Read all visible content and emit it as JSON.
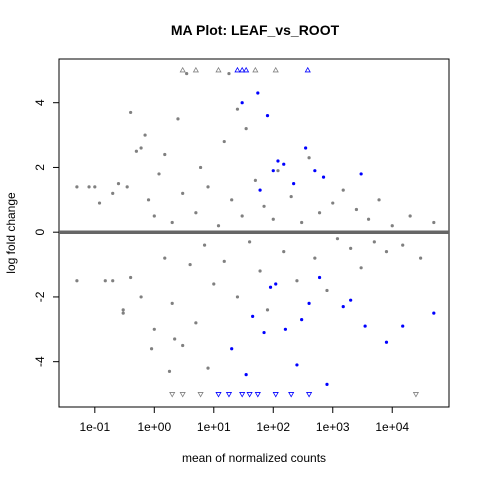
{
  "chart_data": {
    "type": "scatter",
    "title": "MA Plot: LEAF_vs_ROOT",
    "xlabel": "mean of normalized counts",
    "ylabel": "log fold change",
    "x_scale": "log10",
    "xlim": [
      0.025,
      90000
    ],
    "ylim": [
      -5.4,
      5.35
    ],
    "x_ticks": [
      {
        "value": 0.1,
        "label": "1e-01"
      },
      {
        "value": 1,
        "label": "1e+00"
      },
      {
        "value": 10,
        "label": "1e+01"
      },
      {
        "value": 100,
        "label": "1e+02"
      },
      {
        "value": 1000,
        "label": "1e+03"
      },
      {
        "value": 10000,
        "label": "1e+04"
      }
    ],
    "y_ticks": [
      {
        "value": -4,
        "label": "-4"
      },
      {
        "value": -2,
        "label": "-2"
      },
      {
        "value": 0,
        "label": "0"
      },
      {
        "value": 2,
        "label": "2"
      },
      {
        "value": 4,
        "label": "4"
      }
    ],
    "reference_line": {
      "y": 0,
      "color": "#666666"
    },
    "colors": {
      "not_significant": "#808080",
      "significant": "#0000ff"
    },
    "series": [
      {
        "name": "not significant",
        "color": "#808080",
        "marker": "dot",
        "points": [
          [
            0.05,
            1.4
          ],
          [
            0.05,
            -1.5
          ],
          [
            0.08,
            1.4
          ],
          [
            0.1,
            1.4
          ],
          [
            0.12,
            0.9
          ],
          [
            0.15,
            -1.5
          ],
          [
            0.2,
            1.2
          ],
          [
            0.2,
            -1.5
          ],
          [
            0.25,
            1.5
          ],
          [
            0.3,
            -2.5
          ],
          [
            0.35,
            1.4
          ],
          [
            0.4,
            -1.4
          ],
          [
            0.5,
            2.5
          ],
          [
            0.6,
            -2.0
          ],
          [
            0.7,
            3.0
          ],
          [
            0.8,
            1.0
          ],
          [
            1.0,
            -3.0
          ],
          [
            1.0,
            0.5
          ],
          [
            1.2,
            1.8
          ],
          [
            1.5,
            -0.8
          ],
          [
            1.5,
            2.4
          ],
          [
            2.0,
            -2.2
          ],
          [
            2.0,
            0.3
          ],
          [
            2.5,
            3.5
          ],
          [
            3.0,
            -3.5
          ],
          [
            3.0,
            1.2
          ],
          [
            4.0,
            -1.0
          ],
          [
            5.0,
            0.6
          ],
          [
            5.0,
            -2.8
          ],
          [
            6.0,
            2.0
          ],
          [
            7.0,
            -0.4
          ],
          [
            8.0,
            1.4
          ],
          [
            10.0,
            -1.6
          ],
          [
            12.0,
            0.2
          ],
          [
            15.0,
            2.8
          ],
          [
            15.0,
            -0.9
          ],
          [
            20.0,
            1.0
          ],
          [
            25.0,
            -2.0
          ],
          [
            30.0,
            0.5
          ],
          [
            35.0,
            3.2
          ],
          [
            40.0,
            -0.3
          ],
          [
            50.0,
            1.6
          ],
          [
            60.0,
            -1.2
          ],
          [
            70.0,
            0.8
          ],
          [
            80.0,
            -2.4
          ],
          [
            100.0,
            0.4
          ],
          [
            120.0,
            1.9
          ],
          [
            150.0,
            -0.6
          ],
          [
            200.0,
            1.1
          ],
          [
            250.0,
            -1.5
          ],
          [
            300.0,
            0.3
          ],
          [
            400.0,
            2.3
          ],
          [
            500.0,
            -0.8
          ],
          [
            600.0,
            0.6
          ],
          [
            800.0,
            -1.8
          ],
          [
            1000.0,
            0.9
          ],
          [
            1200.0,
            -0.2
          ],
          [
            1500.0,
            1.3
          ],
          [
            2000.0,
            -0.5
          ],
          [
            2500.0,
            0.7
          ],
          [
            3000.0,
            -1.1
          ],
          [
            4000.0,
            0.4
          ],
          [
            5000.0,
            -0.3
          ],
          [
            6000.0,
            1.0
          ],
          [
            8000.0,
            -0.6
          ],
          [
            10000.0,
            0.2
          ],
          [
            15000.0,
            -0.4
          ],
          [
            20000.0,
            0.5
          ],
          [
            30000.0,
            -0.8
          ],
          [
            50000.0,
            0.3
          ],
          [
            3.5,
            4.9
          ],
          [
            18.0,
            4.9
          ],
          [
            0.4,
            3.7
          ],
          [
            1.8,
            -4.3
          ],
          [
            8.0,
            -4.2
          ],
          [
            0.9,
            -3.6
          ],
          [
            2.2,
            -3.3
          ],
          [
            25.0,
            3.8
          ],
          [
            0.3,
            -2.4
          ],
          [
            0.6,
            2.6
          ]
        ]
      },
      {
        "name": "significant",
        "color": "#0000ff",
        "marker": "dot",
        "points": [
          [
            30.0,
            4.0
          ],
          [
            55.0,
            4.3
          ],
          [
            80.0,
            3.6
          ],
          [
            120.0,
            2.2
          ],
          [
            150.0,
            2.1
          ],
          [
            220.0,
            1.5
          ],
          [
            350.0,
            2.6
          ],
          [
            500.0,
            1.9
          ],
          [
            700.0,
            1.7
          ],
          [
            3000.0,
            1.8
          ],
          [
            60.0,
            1.3
          ],
          [
            100.0,
            1.9
          ],
          [
            45.0,
            -2.6
          ],
          [
            70.0,
            -3.1
          ],
          [
            110.0,
            -1.6
          ],
          [
            160.0,
            -3.0
          ],
          [
            300.0,
            -2.7
          ],
          [
            400.0,
            -2.2
          ],
          [
            800.0,
            -4.7
          ],
          [
            1500.0,
            -2.3
          ],
          [
            2000.0,
            -2.1
          ],
          [
            3500.0,
            -2.9
          ],
          [
            8000.0,
            -3.4
          ],
          [
            15000.0,
            -2.9
          ],
          [
            50000.0,
            -2.5
          ],
          [
            20.0,
            -3.6
          ],
          [
            35.0,
            -4.4
          ],
          [
            90.0,
            -1.7
          ],
          [
            250.0,
            -4.1
          ],
          [
            600.0,
            -1.4
          ]
        ]
      },
      {
        "name": "capped high",
        "color_significant": "#0000ff",
        "color_not_significant": "#808080",
        "marker": "triangle-up",
        "points": [
          {
            "x": 3.0,
            "y": 5.0,
            "significant": false
          },
          {
            "x": 5.0,
            "y": 5.0,
            "significant": false
          },
          {
            "x": 12.0,
            "y": 5.0,
            "significant": false
          },
          {
            "x": 25.0,
            "y": 5.0,
            "significant": true
          },
          {
            "x": 30.0,
            "y": 5.0,
            "significant": true
          },
          {
            "x": 35.0,
            "y": 5.0,
            "significant": true
          },
          {
            "x": 50.0,
            "y": 5.0,
            "significant": false
          },
          {
            "x": 110.0,
            "y": 5.0,
            "significant": false
          },
          {
            "x": 380.0,
            "y": 5.0,
            "significant": true
          }
        ]
      },
      {
        "name": "capped low",
        "color_significant": "#0000ff",
        "color_not_significant": "#808080",
        "marker": "triangle-down",
        "points": [
          {
            "x": 2.0,
            "y": -5.0,
            "significant": false
          },
          {
            "x": 3.0,
            "y": -5.0,
            "significant": false
          },
          {
            "x": 6.0,
            "y": -5.0,
            "significant": false
          },
          {
            "x": 12.0,
            "y": -5.0,
            "significant": true
          },
          {
            "x": 18.0,
            "y": -5.0,
            "significant": true
          },
          {
            "x": 30.0,
            "y": -5.0,
            "significant": true
          },
          {
            "x": 40.0,
            "y": -5.0,
            "significant": true
          },
          {
            "x": 55.0,
            "y": -5.0,
            "significant": true
          },
          {
            "x": 110.0,
            "y": -5.0,
            "significant": true
          },
          {
            "x": 200.0,
            "y": -5.0,
            "significant": true
          },
          {
            "x": 400.0,
            "y": -5.0,
            "significant": true
          },
          {
            "x": 25000.0,
            "y": -5.0,
            "significant": false
          }
        ]
      }
    ]
  }
}
